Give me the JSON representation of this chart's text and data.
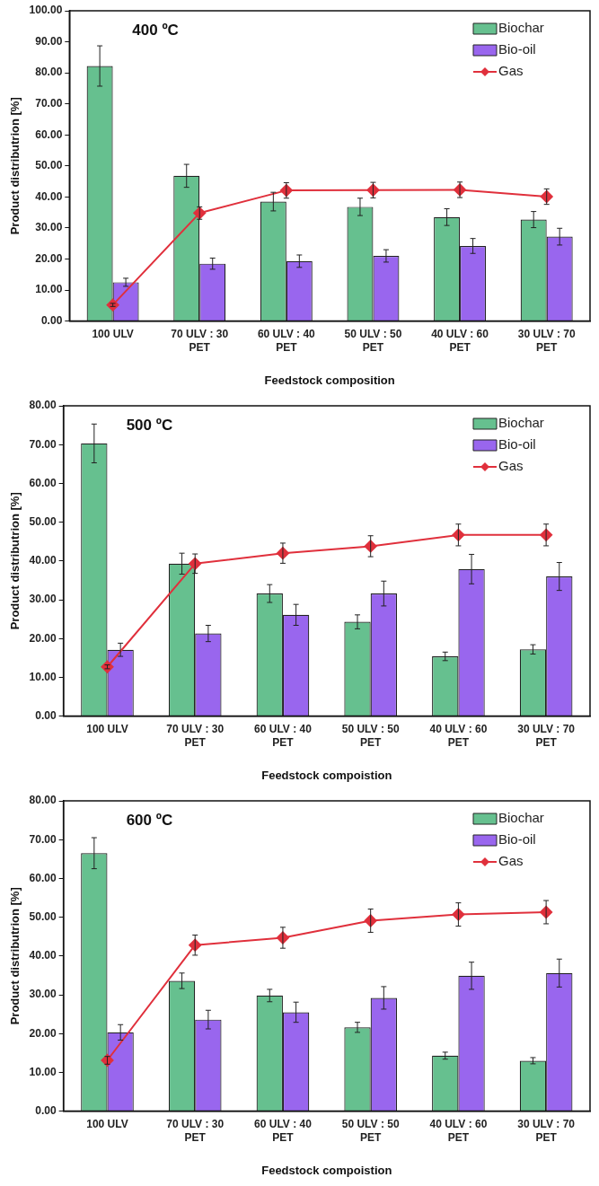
{
  "chart_data": [
    {
      "type": "bar",
      "title": "400 ºC",
      "xlabel": "Feedstock composition",
      "ylabel": "Product distributrion [%]",
      "categories": [
        "100 ULV",
        "70 ULV : 30 PET",
        "60 ULV : 40 PET",
        "50 ULV : 50 PET",
        "40 ULV : 60 PET",
        "30 ULV : 70 PET"
      ],
      "series": [
        {
          "name": "Biochar",
          "color": "#66c08f",
          "values": [
            82.2,
            46.8,
            38.5,
            36.8,
            33.5,
            32.7
          ],
          "errors": [
            6.5,
            3.7,
            3,
            2.8,
            2.7,
            2.6
          ]
        },
        {
          "name": "Bio-oil",
          "color": "#9966ee",
          "values": [
            12.5,
            18.5,
            19.3,
            21,
            24.2,
            27.2
          ],
          "errors": [
            1.3,
            1.8,
            2,
            2,
            2.4,
            2.7
          ]
        },
        {
          "name": "Gas",
          "type": "line",
          "color": "#e0303c",
          "values": [
            5.2,
            34.8,
            42.1,
            42.2,
            42.3,
            40.1
          ],
          "errors": [
            0.5,
            2,
            2.5,
            2.5,
            2.5,
            2.5
          ]
        }
      ],
      "ylim": [
        0,
        100
      ],
      "yticks": [
        {
          "value": 0,
          "label": "0.00"
        },
        {
          "value": 10,
          "label": "10.00"
        },
        {
          "value": 20,
          "label": "20.00"
        },
        {
          "value": 30,
          "label": "30.00"
        },
        {
          "value": 40,
          "label": "40.00"
        },
        {
          "value": 50,
          "label": "50.00"
        },
        {
          "value": 60,
          "label": "60.00"
        },
        {
          "value": 70,
          "label": "70.00"
        },
        {
          "value": 80,
          "label": "80.00"
        },
        {
          "value": 90,
          "label": "90.00"
        },
        {
          "value": 100,
          "label": "100.00"
        }
      ],
      "grid": false,
      "legend": "top right",
      "marker": "diamond",
      "line_style": "solid"
    },
    {
      "type": "bar",
      "title": "500 ºC",
      "xlabel": "Feedstock compoistion",
      "ylabel": "Product distributrion [%]",
      "categories": [
        "100 ULV",
        "70 ULV : 30 PET",
        "60 ULV : 40 PET",
        "50 ULV : 50 PET",
        "40 ULV : 60 PET",
        "30 ULV : 70 PET"
      ],
      "series": [
        {
          "name": "Biochar",
          "color": "#66c08f",
          "values": [
            70.3,
            39.3,
            31.6,
            24.3,
            15.4,
            17.2
          ],
          "errors": [
            5,
            2.7,
            2.3,
            1.8,
            1.1,
            1.2
          ]
        },
        {
          "name": "Bio-oil",
          "color": "#9966ee",
          "values": [
            17.1,
            21.3,
            26.1,
            31.6,
            37.9,
            36
          ],
          "errors": [
            1.7,
            2.1,
            2.7,
            3.2,
            3.8,
            3.6
          ]
        },
        {
          "name": "Gas",
          "type": "line",
          "color": "#e0303c",
          "values": [
            12.7,
            39.3,
            42,
            43.8,
            46.7,
            46.7
          ],
          "errors": [
            0.5,
            2.5,
            2.6,
            2.7,
            2.8,
            2.8
          ]
        }
      ],
      "ylim": [
        0,
        80
      ],
      "yticks": [
        {
          "value": 0,
          "label": "0.00"
        },
        {
          "value": 10,
          "label": "10.00"
        },
        {
          "value": 20,
          "label": "20.00"
        },
        {
          "value": 30,
          "label": "30.00"
        },
        {
          "value": 40,
          "label": "40.00"
        },
        {
          "value": 50,
          "label": "50.00"
        },
        {
          "value": 60,
          "label": "60.00"
        },
        {
          "value": 70,
          "label": "70.00"
        },
        {
          "value": 80,
          "label": "80.00"
        }
      ],
      "grid": false,
      "legend": "top right",
      "marker": "diamond",
      "line_style": "solid"
    },
    {
      "type": "bar",
      "title": "600 ºC",
      "xlabel": "Feedstock compoistion",
      "ylabel": "Product distributrion [%]",
      "categories": [
        "100 ULV",
        "70 ULV : 30 PET",
        "60 ULV : 40 PET",
        "50 ULV : 50 PET",
        "40 ULV : 60 PET",
        "30 ULV : 70 PET"
      ],
      "series": [
        {
          "name": "Biochar",
          "color": "#66c08f",
          "values": [
            66.5,
            33.6,
            29.8,
            21.6,
            14.3,
            13
          ],
          "errors": [
            4,
            2,
            1.6,
            1.3,
            0.9,
            0.8
          ]
        },
        {
          "name": "Bio-oil",
          "color": "#9966ee",
          "values": [
            20.3,
            23.6,
            25.5,
            29.2,
            34.9,
            35.6
          ],
          "errors": [
            2,
            2.4,
            2.6,
            2.9,
            3.5,
            3.6
          ]
        },
        {
          "name": "Gas",
          "type": "line",
          "color": "#e0303c",
          "values": [
            13.1,
            42.8,
            44.7,
            49.1,
            50.7,
            51.3
          ],
          "errors": [
            1,
            2.6,
            2.7,
            3,
            3,
            3
          ]
        }
      ],
      "ylim": [
        0,
        80
      ],
      "yticks": [
        {
          "value": 0,
          "label": "0.00"
        },
        {
          "value": 10,
          "label": "10.00"
        },
        {
          "value": 20,
          "label": "20.00"
        },
        {
          "value": 30,
          "label": "30.00"
        },
        {
          "value": 40,
          "label": "40.00"
        },
        {
          "value": 50,
          "label": "50.00"
        },
        {
          "value": 60,
          "label": "60.00"
        },
        {
          "value": 70,
          "label": "70.00"
        },
        {
          "value": 80,
          "label": "80.00"
        }
      ],
      "grid": false,
      "legend": "top right",
      "marker": "diamond",
      "line_style": "solid"
    }
  ]
}
